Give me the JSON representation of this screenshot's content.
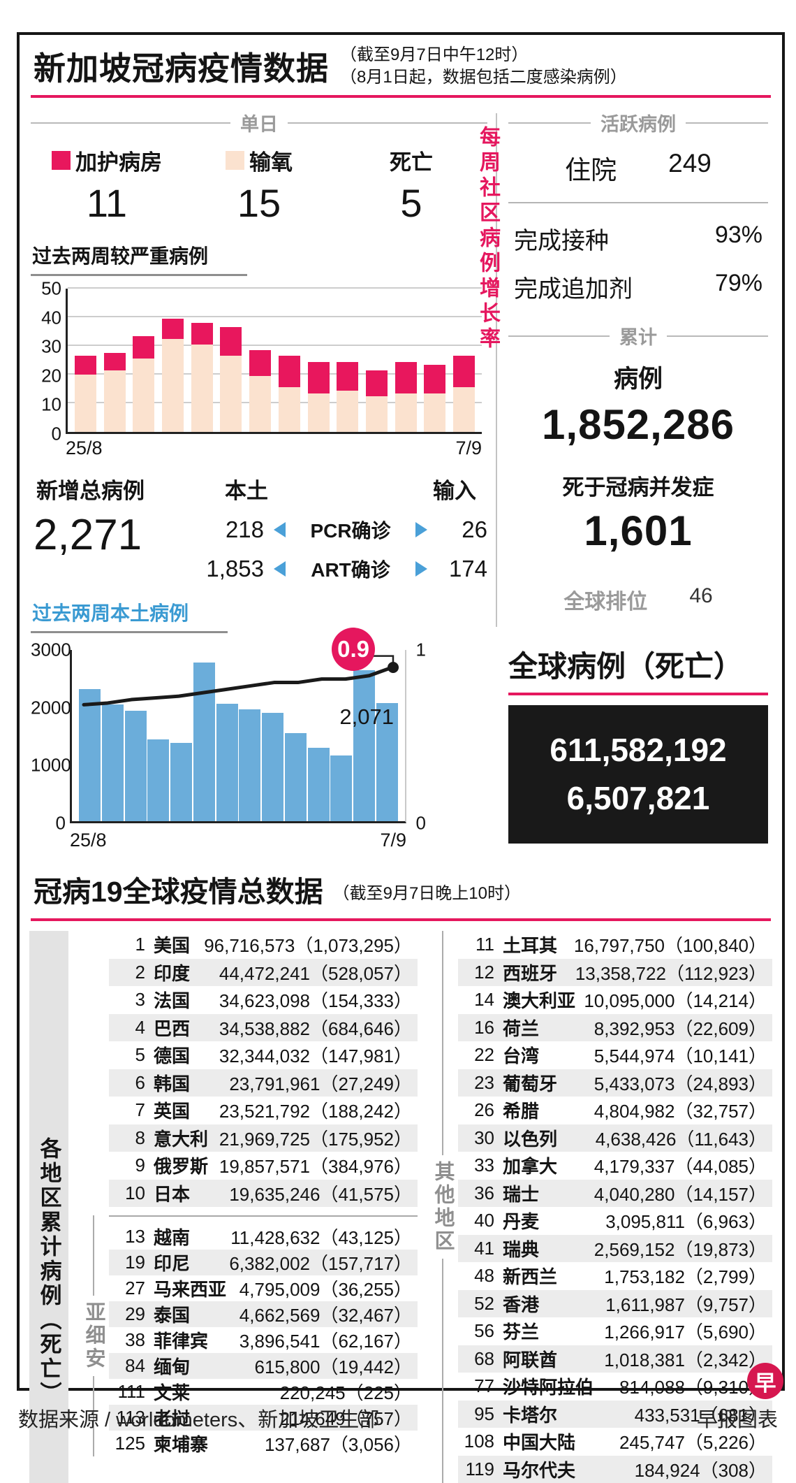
{
  "colors": {
    "accent_pink": "#e5175e",
    "icu_pink": "#e8175d",
    "oxygen_peach": "#fbe2cf",
    "bar_blue": "#6badda",
    "title_blue": "#3a9ad2",
    "triangle_blue": "#4aa0d8",
    "box_black": "#191919",
    "row_shade": "#ececec"
  },
  "header": {
    "title": "新加坡冠病疫情数据",
    "sub1": "（截至9月7日中午12时）",
    "sub2": "（8月1日起，数据包括二度感染病例）"
  },
  "daily": {
    "section_label": "单日",
    "items": [
      {
        "label": "加护病房",
        "value": "11"
      },
      {
        "label": "输氧",
        "value": "15"
      },
      {
        "label": "死亡",
        "value": "5"
      }
    ]
  },
  "new_cases": {
    "total_label": "新增总病例",
    "total": "2,271",
    "local_label": "本土",
    "import_label": "输入",
    "rows": [
      {
        "local": "218",
        "label": "PCR确诊",
        "imported": "26"
      },
      {
        "local": "1,853",
        "label": "ART确诊",
        "imported": "174"
      }
    ]
  },
  "active_cases": {
    "section_label": "活跃病例",
    "hospital_label": "住院",
    "hospital_value": "249",
    "vaccinated_label": "完成接种",
    "vaccinated_value": "93%",
    "booster_label": "完成追加剂",
    "booster_value": "79%"
  },
  "cumulative": {
    "section_label": "累计",
    "cases_label": "病例",
    "cases_value": "1,852,286",
    "deaths_label": "死于冠病并发症",
    "deaths_value": "1,601",
    "rank_label": "全球排位",
    "rank_value": "46"
  },
  "global": {
    "title": "全球病例（死亡）",
    "cases": "611,582,192",
    "deaths": "6,507,821"
  },
  "chart_data": [
    {
      "type": "bar",
      "stacked": true,
      "title": "过去两周较严重病例",
      "categories": [
        "25/8",
        "",
        "",
        "",
        "",
        "",
        "",
        "",
        "",
        "",
        "",
        "",
        "",
        "7/9"
      ],
      "series": [
        {
          "name": "输氧",
          "color": "#fbe2cf",
          "values": [
            20,
            21.5,
            25.5,
            32.5,
            30.5,
            26.5,
            19.5,
            15.5,
            13.5,
            14.5,
            12.5,
            13.5,
            13.5,
            15.5
          ]
        },
        {
          "name": "加护病房",
          "color": "#e8175d",
          "values": [
            6.5,
            6,
            8,
            7,
            7.5,
            10,
            9,
            11,
            11,
            10,
            9,
            11,
            10,
            11
          ]
        }
      ],
      "ylim": [
        0,
        50
      ],
      "yticks": [
        0,
        10,
        20,
        30,
        40,
        50
      ],
      "grid": true,
      "legend_position": "top"
    },
    {
      "type": "bar",
      "title": "过去两周本土病例",
      "categories": [
        "25/8",
        "",
        "",
        "",
        "",
        "",
        "",
        "",
        "",
        "",
        "",
        "",
        "",
        "7/9"
      ],
      "series": [
        {
          "name": "本土病例",
          "color": "#6badda",
          "values": [
            2320,
            2050,
            1930,
            1430,
            1370,
            2780,
            2060,
            1960,
            1900,
            1540,
            1290,
            1150,
            2650,
            2071
          ]
        }
      ],
      "line_series": {
        "name": "每周社区病例增长率",
        "color": "#1a1a1a",
        "axis": "right",
        "values": [
          0.68,
          0.69,
          0.71,
          0.72,
          0.73,
          0.75,
          0.77,
          0.79,
          0.81,
          0.81,
          0.83,
          0.83,
          0.85,
          0.9
        ]
      },
      "ylim": [
        0,
        3000
      ],
      "yticks": [
        0,
        1000,
        2000,
        3000
      ],
      "y2lim": [
        0,
        1
      ],
      "y2ticks": [
        0,
        1
      ],
      "grid": false,
      "annotations": {
        "badge": "0.9",
        "last_bar_label": "2,071"
      }
    }
  ],
  "section2": {
    "title": "冠病19全球疫情总数据",
    "subtitle": "（截至9月7日晚上10时）"
  },
  "world_table": {
    "left_label": "各地区累计病例（死亡）",
    "asean_label": "亚细安",
    "others_label": "其他地区",
    "top10": [
      {
        "rank": "1",
        "name": "美国",
        "cases": "96,716,573",
        "deaths": "1,073,295"
      },
      {
        "rank": "2",
        "name": "印度",
        "cases": "44,472,241",
        "deaths": "528,057"
      },
      {
        "rank": "3",
        "name": "法国",
        "cases": "34,623,098",
        "deaths": "154,333"
      },
      {
        "rank": "4",
        "name": "巴西",
        "cases": "34,538,882",
        "deaths": "684,646"
      },
      {
        "rank": "5",
        "name": "德国",
        "cases": "32,344,032",
        "deaths": "147,981"
      },
      {
        "rank": "6",
        "name": "韩国",
        "cases": "23,791,961",
        "deaths": "27,249"
      },
      {
        "rank": "7",
        "name": "英国",
        "cases": "23,521,792",
        "deaths": "188,242"
      },
      {
        "rank": "8",
        "name": "意大利",
        "cases": "21,969,725",
        "deaths": "175,952"
      },
      {
        "rank": "9",
        "name": "俄罗斯",
        "cases": "19,857,571",
        "deaths": "384,976"
      },
      {
        "rank": "10",
        "name": "日本",
        "cases": "19,635,246",
        "deaths": "41,575"
      }
    ],
    "asean": [
      {
        "rank": "13",
        "name": "越南",
        "cases": "11,428,632",
        "deaths": "43,125"
      },
      {
        "rank": "19",
        "name": "印尼",
        "cases": "6,382,002",
        "deaths": "157,717"
      },
      {
        "rank": "27",
        "name": "马来西亚",
        "cases": "4,795,009",
        "deaths": "36,255"
      },
      {
        "rank": "29",
        "name": "泰国",
        "cases": "4,662,569",
        "deaths": "32,467"
      },
      {
        "rank": "38",
        "name": "菲律宾",
        "cases": "3,896,541",
        "deaths": "62,167"
      },
      {
        "rank": "84",
        "name": "缅甸",
        "cases": "615,800",
        "deaths": "19,442"
      },
      {
        "rank": "111",
        "name": "文莱",
        "cases": "220,245",
        "deaths": "225"
      },
      {
        "rank": "113",
        "name": "老挝",
        "cases": "214,649",
        "deaths": "757"
      },
      {
        "rank": "125",
        "name": "柬埔寨",
        "cases": "137,687",
        "deaths": "3,056"
      }
    ],
    "others": [
      {
        "rank": "11",
        "name": "土耳其",
        "cases": "16,797,750",
        "deaths": "100,840"
      },
      {
        "rank": "12",
        "name": "西班牙",
        "cases": "13,358,722",
        "deaths": "112,923"
      },
      {
        "rank": "14",
        "name": "澳大利亚",
        "cases": "10,095,000",
        "deaths": "14,214"
      },
      {
        "rank": "16",
        "name": "荷兰",
        "cases": "8,392,953",
        "deaths": "22,609"
      },
      {
        "rank": "22",
        "name": "台湾",
        "cases": "5,544,974",
        "deaths": "10,141"
      },
      {
        "rank": "23",
        "name": "葡萄牙",
        "cases": "5,433,073",
        "deaths": "24,893"
      },
      {
        "rank": "26",
        "name": "希腊",
        "cases": "4,804,982",
        "deaths": "32,757"
      },
      {
        "rank": "30",
        "name": "以色列",
        "cases": "4,638,426",
        "deaths": "11,643"
      },
      {
        "rank": "33",
        "name": "加拿大",
        "cases": "4,179,337",
        "deaths": "44,085"
      },
      {
        "rank": "36",
        "name": "瑞士",
        "cases": "4,040,280",
        "deaths": "14,157"
      },
      {
        "rank": "40",
        "name": "丹麦",
        "cases": "3,095,811",
        "deaths": "6,963"
      },
      {
        "rank": "41",
        "name": "瑞典",
        "cases": "2,569,152",
        "deaths": "19,873"
      },
      {
        "rank": "48",
        "name": "新西兰",
        "cases": "1,753,182",
        "deaths": "2,799"
      },
      {
        "rank": "52",
        "name": "香港",
        "cases": "1,611,987",
        "deaths": "9,757"
      },
      {
        "rank": "56",
        "name": "芬兰",
        "cases": "1,266,917",
        "deaths": "5,690"
      },
      {
        "rank": "68",
        "name": "阿联酋",
        "cases": "1,018,381",
        "deaths": "2,342"
      },
      {
        "rank": "77",
        "name": "沙特阿拉伯",
        "cases": "814,088",
        "deaths": "9,310"
      },
      {
        "rank": "95",
        "name": "卡塔尔",
        "cases": "433,531",
        "deaths": "681"
      },
      {
        "rank": "108",
        "name": "中国大陆",
        "cases": "245,747",
        "deaths": "5,226"
      },
      {
        "rank": "119",
        "name": "马尔代夫",
        "cases": "184,924",
        "deaths": "308"
      }
    ]
  },
  "footer": {
    "source": "数据来源 / worldometers、新加坡卫生部",
    "credit": "早报图表",
    "logo": "早"
  }
}
